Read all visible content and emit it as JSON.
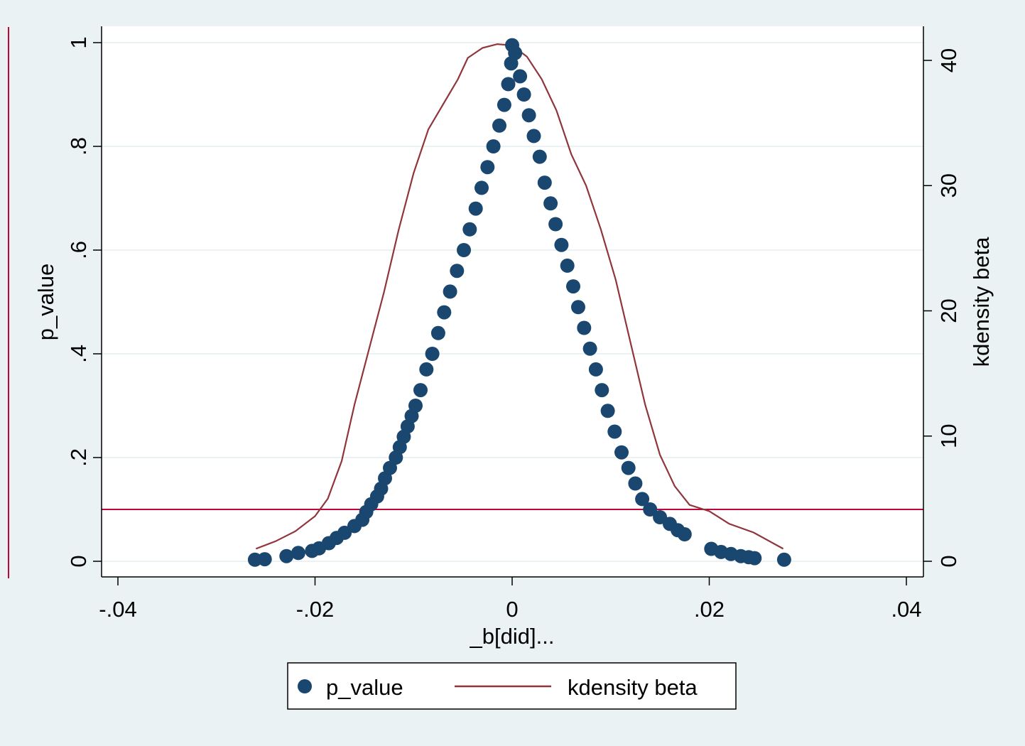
{
  "chart_data": {
    "type": "scatter",
    "xlabel": "_b[did]...",
    "ylabel_left": "p_value",
    "ylabel_right": "kdensity beta",
    "xlim": [
      -0.04,
      0.04
    ],
    "ylim_left": [
      0,
      1
    ],
    "ylim_right": [
      0,
      40
    ],
    "x_ticks": [
      -0.04,
      -0.02,
      0,
      0.02,
      0.04
    ],
    "x_tick_labels": [
      "-.04",
      "-.02",
      "0",
      ".02",
      ".04"
    ],
    "y_left_ticks": [
      0,
      0.2,
      0.4,
      0.6,
      0.8,
      1
    ],
    "y_left_tick_labels": [
      "0",
      ".2",
      ".4",
      ".6",
      ".8",
      "1"
    ],
    "y_right_ticks": [
      0,
      10,
      20,
      30,
      40
    ],
    "y_right_tick_labels": [
      "0",
      "10",
      "20",
      "30",
      "40"
    ],
    "grid": true,
    "legend_position": "bottom",
    "reference_line_y": 0.1,
    "series": [
      {
        "name": "p_value",
        "type": "scatter",
        "axis": "left",
        "color": "#1a476f",
        "points": [
          [
            -0.0261,
            0.003
          ],
          [
            -0.0251,
            0.004
          ],
          [
            -0.0229,
            0.01
          ],
          [
            -0.0217,
            0.016
          ],
          [
            -0.0203,
            0.02
          ],
          [
            -0.0196,
            0.025
          ],
          [
            -0.0186,
            0.035
          ],
          [
            -0.0178,
            0.045
          ],
          [
            -0.017,
            0.055
          ],
          [
            -0.016,
            0.068
          ],
          [
            -0.0152,
            0.08
          ],
          [
            -0.0148,
            0.095
          ],
          [
            -0.0143,
            0.11
          ],
          [
            -0.0137,
            0.125
          ],
          [
            -0.0133,
            0.14
          ],
          [
            -0.0129,
            0.16
          ],
          [
            -0.0124,
            0.18
          ],
          [
            -0.0118,
            0.2
          ],
          [
            -0.0114,
            0.22
          ],
          [
            -0.011,
            0.24
          ],
          [
            -0.0106,
            0.26
          ],
          [
            -0.0102,
            0.28
          ],
          [
            -0.0098,
            0.3
          ],
          [
            -0.0093,
            0.33
          ],
          [
            -0.0087,
            0.37
          ],
          [
            -0.0081,
            0.4
          ],
          [
            -0.0075,
            0.44
          ],
          [
            -0.0069,
            0.48
          ],
          [
            -0.0063,
            0.52
          ],
          [
            -0.0056,
            0.56
          ],
          [
            -0.0049,
            0.6
          ],
          [
            -0.0043,
            0.64
          ],
          [
            -0.0037,
            0.68
          ],
          [
            -0.0031,
            0.72
          ],
          [
            -0.0025,
            0.76
          ],
          [
            -0.0019,
            0.8
          ],
          [
            -0.0013,
            0.84
          ],
          [
            -0.0008,
            0.88
          ],
          [
            -0.0004,
            0.92
          ],
          [
            -0.0001,
            0.96
          ],
          [
            0.0,
            0.995
          ],
          [
            0.0003,
            0.98
          ],
          [
            0.0008,
            0.935
          ],
          [
            0.0012,
            0.9
          ],
          [
            0.0017,
            0.86
          ],
          [
            0.0022,
            0.82
          ],
          [
            0.0028,
            0.78
          ],
          [
            0.0033,
            0.73
          ],
          [
            0.0039,
            0.69
          ],
          [
            0.0044,
            0.65
          ],
          [
            0.005,
            0.61
          ],
          [
            0.0056,
            0.57
          ],
          [
            0.0062,
            0.53
          ],
          [
            0.0067,
            0.49
          ],
          [
            0.0073,
            0.45
          ],
          [
            0.0079,
            0.41
          ],
          [
            0.0085,
            0.37
          ],
          [
            0.0091,
            0.33
          ],
          [
            0.0097,
            0.29
          ],
          [
            0.0104,
            0.25
          ],
          [
            0.0111,
            0.21
          ],
          [
            0.0118,
            0.18
          ],
          [
            0.0125,
            0.15
          ],
          [
            0.0132,
            0.12
          ],
          [
            0.014,
            0.1
          ],
          [
            0.015,
            0.085
          ],
          [
            0.016,
            0.072
          ],
          [
            0.0168,
            0.06
          ],
          [
            0.0175,
            0.052
          ],
          [
            0.0202,
            0.024
          ],
          [
            0.0212,
            0.018
          ],
          [
            0.0222,
            0.014
          ],
          [
            0.0232,
            0.01
          ],
          [
            0.024,
            0.008
          ],
          [
            0.0246,
            0.006
          ],
          [
            0.0276,
            0.003
          ]
        ]
      },
      {
        "name": "kdensity beta",
        "type": "line",
        "axis": "right",
        "color": "#90353b",
        "points": [
          [
            -0.026,
            1.0
          ],
          [
            -0.024,
            1.6
          ],
          [
            -0.022,
            2.4
          ],
          [
            -0.02,
            3.6
          ],
          [
            -0.0187,
            5.0
          ],
          [
            -0.0173,
            8.0
          ],
          [
            -0.016,
            12.5
          ],
          [
            -0.0145,
            17.0
          ],
          [
            -0.013,
            21.5
          ],
          [
            -0.0115,
            26.5
          ],
          [
            -0.01,
            31.0
          ],
          [
            -0.0085,
            34.5
          ],
          [
            -0.007,
            36.5
          ],
          [
            -0.0055,
            38.5
          ],
          [
            -0.0045,
            40.2
          ],
          [
            -0.003,
            41.0
          ],
          [
            -0.0015,
            41.3
          ],
          [
            0.0,
            41.2
          ],
          [
            0.0015,
            40.3
          ],
          [
            0.003,
            38.5
          ],
          [
            0.0045,
            36.0
          ],
          [
            0.006,
            32.5
          ],
          [
            0.0075,
            30.0
          ],
          [
            0.009,
            26.5
          ],
          [
            0.0105,
            22.5
          ],
          [
            0.012,
            17.5
          ],
          [
            0.0135,
            12.5
          ],
          [
            0.015,
            8.5
          ],
          [
            0.0165,
            6.0
          ],
          [
            0.018,
            4.5
          ],
          [
            0.02,
            4.0
          ],
          [
            0.022,
            3.0
          ],
          [
            0.0245,
            2.3
          ],
          [
            0.0275,
            1.0
          ]
        ]
      }
    ]
  }
}
